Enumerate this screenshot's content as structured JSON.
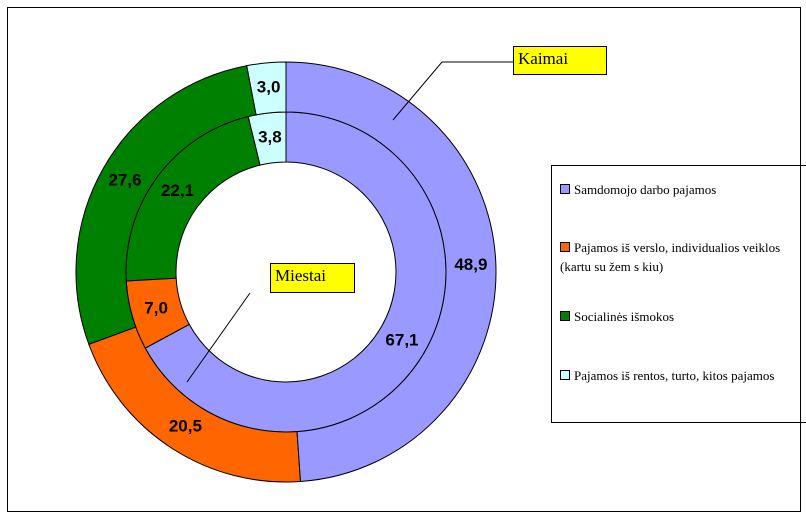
{
  "chart_data": {
    "type": "donut",
    "categories": [
      "Samdomojo darbo pajamos",
      "Pajamos iš verslo, individualios veiklos (kartu su žem s  kiu)",
      "Socialinės išmokos",
      "Pajamos iš rentos, turto, kitos pajamos"
    ],
    "colors": [
      "#9999ff",
      "#ff6600",
      "#008000",
      "#ccffff"
    ],
    "series": [
      {
        "name": "Kaimai",
        "values": [
          48.9,
          20.5,
          27.6,
          3.0
        ],
        "value_labels": [
          "48,9",
          "20,5",
          "27,6",
          "3,0"
        ]
      },
      {
        "name": "Miestai",
        "values": [
          67.1,
          7.0,
          22.1,
          3.8
        ],
        "value_labels": [
          "67,1",
          "7,0",
          "22,1",
          "3,8"
        ]
      }
    ]
  }
}
